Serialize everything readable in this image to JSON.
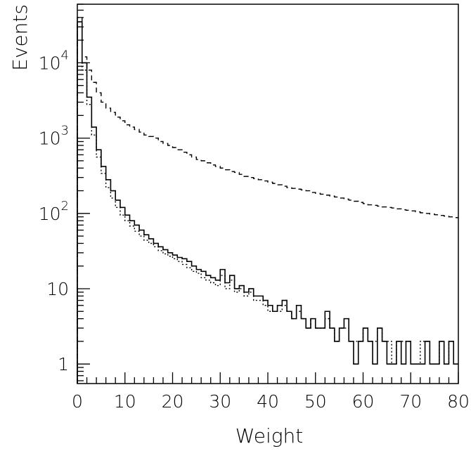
{
  "chart_data": {
    "type": "histogram",
    "xlabel": "Weight",
    "ylabel": "Events",
    "xlim": [
      0,
      80
    ],
    "ylim": [
      0.55,
      60000
    ],
    "yscale": "log",
    "grid": false,
    "bin_width": 1,
    "x_ticks": [
      {
        "value": 0,
        "label": "0"
      },
      {
        "value": 10,
        "label": "10"
      },
      {
        "value": 20,
        "label": "20"
      },
      {
        "value": 30,
        "label": "30"
      },
      {
        "value": 40,
        "label": "40"
      },
      {
        "value": 50,
        "label": "50"
      },
      {
        "value": 60,
        "label": "60"
      },
      {
        "value": 70,
        "label": "70"
      },
      {
        "value": 80,
        "label": "80"
      }
    ],
    "y_ticks": [
      {
        "value": 1,
        "label": "1",
        "exponent": ""
      },
      {
        "value": 10,
        "label": "10",
        "exponent": ""
      },
      {
        "value": 100,
        "label": "10",
        "exponent": "2"
      },
      {
        "value": 1000,
        "label": "10",
        "exponent": "3"
      },
      {
        "value": 10000,
        "label": "10",
        "exponent": "4"
      }
    ],
    "series": [
      {
        "style": "dashed",
        "values": [
          40000,
          12000,
          8000,
          5500,
          4000,
          3000,
          2500,
          2200,
          1900,
          1700,
          1500,
          1400,
          1300,
          1200,
          1100,
          1050,
          1000,
          900,
          850,
          800,
          750,
          700,
          650,
          600,
          560,
          520,
          500,
          470,
          440,
          420,
          400,
          380,
          360,
          350,
          330,
          310,
          300,
          290,
          280,
          270,
          260,
          250,
          240,
          230,
          220,
          215,
          210,
          205,
          200,
          190,
          185,
          180,
          175,
          170,
          165,
          160,
          155,
          150,
          145,
          140,
          135,
          130,
          128,
          125,
          122,
          120,
          118,
          115,
          112,
          110,
          108,
          105,
          102,
          100,
          98,
          96,
          94,
          92,
          90,
          88
        ]
      },
      {
        "style": "solid",
        "values": [
          35000,
          10000,
          3500,
          1400,
          700,
          420,
          280,
          200,
          150,
          120,
          95,
          80,
          70,
          60,
          52,
          46,
          40,
          36,
          33,
          30,
          28,
          26,
          25,
          23,
          20,
          18,
          17,
          15,
          14,
          13,
          18,
          12,
          15,
          10,
          11,
          9,
          10,
          8,
          8,
          7,
          6,
          5,
          6,
          7,
          5,
          4,
          6,
          4,
          3,
          4,
          3,
          3,
          5,
          3,
          2,
          3,
          4,
          2,
          1,
          2,
          3,
          2,
          1,
          3,
          2,
          1,
          1,
          2,
          1,
          2,
          1,
          1,
          1,
          2,
          1,
          1,
          2,
          1,
          2,
          1
        ]
      },
      {
        "style": "dotted",
        "values": [
          30000,
          8000,
          2800,
          1100,
          560,
          340,
          220,
          160,
          120,
          95,
          80,
          68,
          58,
          50,
          44,
          40,
          36,
          32,
          29,
          27,
          25,
          23,
          21,
          19,
          17,
          16,
          14,
          13,
          12,
          11,
          15,
          10,
          13,
          9,
          10,
          8,
          9,
          7,
          7,
          6,
          5,
          5,
          5,
          6,
          5,
          4,
          5,
          4,
          3,
          4,
          3,
          3,
          4,
          3,
          2,
          3,
          3,
          2,
          2,
          2,
          3,
          2,
          2,
          3,
          2,
          2,
          1,
          2,
          2,
          2,
          1,
          1,
          2,
          2,
          1,
          1,
          2,
          1,
          2,
          1
        ]
      }
    ]
  }
}
